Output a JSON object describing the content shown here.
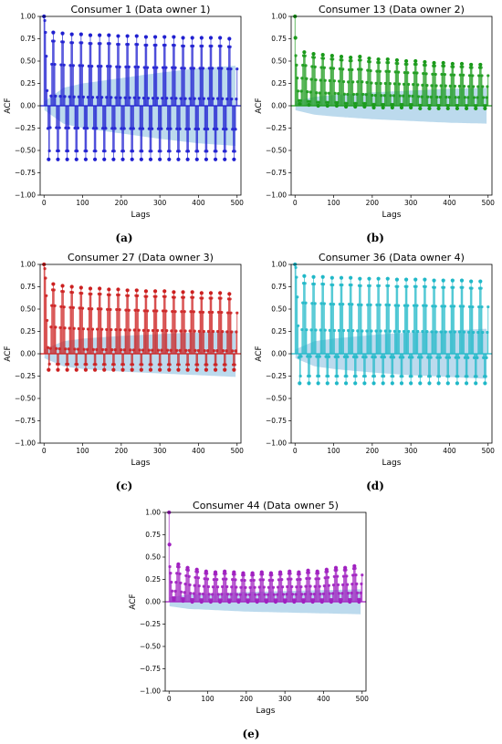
{
  "chart_data": [
    {
      "type": "line",
      "title": "Consumer 1 (Data owner 1)",
      "xlabel": "Lags",
      "ylabel": "ACF",
      "xlim": [
        -10,
        510
      ],
      "ylim": [
        -1.0,
        1.0
      ],
      "xticks": [
        0,
        100,
        200,
        300,
        400,
        500
      ],
      "yticks": [
        -1.0,
        -0.75,
        -0.5,
        -0.25,
        0.0,
        0.25,
        0.5,
        0.75,
        1.0
      ],
      "xtick_labels": [
        "0",
        "100",
        "200",
        "300",
        "400",
        "500"
      ],
      "ytick_labels": [
        "−1.00",
        "−0.75",
        "−0.50",
        "−0.25",
        "0.00",
        "0.25",
        "0.50",
        "0.75",
        "1.00"
      ],
      "caption": "(a)",
      "color": "#1f1fd0",
      "band_color": "#6baed6",
      "max_lag": 500,
      "period": 24,
      "peaks": [
        [
          0,
          1.0
        ],
        [
          24,
          0.82
        ],
        [
          48,
          0.81
        ],
        [
          72,
          0.8
        ],
        [
          96,
          0.8
        ],
        [
          120,
          0.79
        ],
        [
          144,
          0.79
        ],
        [
          168,
          0.79
        ],
        [
          192,
          0.78
        ],
        [
          216,
          0.78
        ],
        [
          240,
          0.78
        ],
        [
          264,
          0.77
        ],
        [
          288,
          0.77
        ],
        [
          312,
          0.77
        ],
        [
          336,
          0.77
        ],
        [
          360,
          0.76
        ],
        [
          384,
          0.76
        ],
        [
          408,
          0.76
        ],
        [
          432,
          0.76
        ],
        [
          456,
          0.76
        ],
        [
          480,
          0.75
        ]
      ],
      "troughs": [
        [
          12,
          -0.6
        ],
        [
          36,
          -0.6
        ],
        [
          60,
          -0.6
        ],
        [
          84,
          -0.6
        ],
        [
          108,
          -0.6
        ],
        [
          132,
          -0.6
        ],
        [
          156,
          -0.6
        ],
        [
          180,
          -0.6
        ],
        [
          204,
          -0.6
        ],
        [
          228,
          -0.6
        ],
        [
          252,
          -0.6
        ],
        [
          276,
          -0.6
        ],
        [
          300,
          -0.6
        ],
        [
          324,
          -0.6
        ],
        [
          348,
          -0.6
        ],
        [
          372,
          -0.6
        ],
        [
          396,
          -0.6
        ],
        [
          420,
          -0.6
        ],
        [
          444,
          -0.6
        ],
        [
          468,
          -0.6
        ],
        [
          492,
          -0.6
        ]
      ],
      "confidence_band": [
        [
          1,
          0.05
        ],
        [
          50,
          0.2
        ],
        [
          100,
          0.25
        ],
        [
          200,
          0.31
        ],
        [
          300,
          0.37
        ],
        [
          400,
          0.42
        ],
        [
          500,
          0.45
        ]
      ]
    },
    {
      "type": "line",
      "title": "Consumer 13 (Data owner 2)",
      "xlabel": "Lags",
      "ylabel": "ACF",
      "xlim": [
        -10,
        510
      ],
      "ylim": [
        -1.0,
        1.0
      ],
      "xticks": [
        0,
        100,
        200,
        300,
        400,
        500
      ],
      "yticks": [
        -1.0,
        -0.75,
        -0.5,
        -0.25,
        0.0,
        0.25,
        0.5,
        0.75,
        1.0
      ],
      "xtick_labels": [
        "0",
        "100",
        "200",
        "300",
        "400",
        "500"
      ],
      "ytick_labels": [
        "−1.00",
        "−0.75",
        "−0.50",
        "−0.25",
        "0.00",
        "0.25",
        "0.50",
        "0.75",
        "1.00"
      ],
      "caption": "(b)",
      "color": "#1a9a1a",
      "band_color": "#6baed6",
      "max_lag": 500,
      "period": 24,
      "peaks": [
        [
          0,
          1.0
        ],
        [
          1,
          0.76
        ],
        [
          24,
          0.6
        ],
        [
          48,
          0.58
        ],
        [
          72,
          0.57
        ],
        [
          96,
          0.56
        ],
        [
          120,
          0.55
        ],
        [
          144,
          0.54
        ],
        [
          168,
          0.55
        ],
        [
          192,
          0.53
        ],
        [
          216,
          0.52
        ],
        [
          240,
          0.52
        ],
        [
          264,
          0.51
        ],
        [
          288,
          0.5
        ],
        [
          312,
          0.5
        ],
        [
          336,
          0.49
        ],
        [
          360,
          0.48
        ],
        [
          384,
          0.48
        ],
        [
          408,
          0.47
        ],
        [
          432,
          0.47
        ],
        [
          456,
          0.46
        ],
        [
          480,
          0.46
        ]
      ],
      "troughs": [
        [
          12,
          0.02
        ],
        [
          36,
          0.01
        ],
        [
          60,
          0.0
        ],
        [
          84,
          0.0
        ],
        [
          108,
          0.0
        ],
        [
          132,
          -0.01
        ],
        [
          156,
          -0.01
        ],
        [
          180,
          -0.01
        ],
        [
          204,
          -0.02
        ],
        [
          228,
          -0.02
        ],
        [
          252,
          -0.02
        ],
        [
          276,
          -0.02
        ],
        [
          300,
          -0.02
        ],
        [
          324,
          -0.03
        ],
        [
          348,
          -0.03
        ],
        [
          372,
          -0.03
        ],
        [
          396,
          -0.03
        ],
        [
          420,
          -0.03
        ],
        [
          444,
          -0.03
        ],
        [
          468,
          -0.03
        ],
        [
          492,
          -0.03
        ]
      ],
      "confidence_band": [
        [
          1,
          0.05
        ],
        [
          50,
          0.1
        ],
        [
          100,
          0.12
        ],
        [
          200,
          0.15
        ],
        [
          300,
          0.17
        ],
        [
          400,
          0.19
        ],
        [
          500,
          0.2
        ]
      ]
    },
    {
      "type": "line",
      "title": "Consumer 27 (Data owner 3)",
      "xlabel": "Lags",
      "ylabel": "ACF",
      "xlim": [
        -10,
        510
      ],
      "ylim": [
        -1.0,
        1.0
      ],
      "xticks": [
        0,
        100,
        200,
        300,
        400,
        500
      ],
      "yticks": [
        -1.0,
        -0.75,
        -0.5,
        -0.25,
        0.0,
        0.25,
        0.5,
        0.75,
        1.0
      ],
      "xtick_labels": [
        "0",
        "100",
        "200",
        "300",
        "400",
        "500"
      ],
      "ytick_labels": [
        "−1.00",
        "−0.75",
        "−0.50",
        "−0.25",
        "0.00",
        "0.25",
        "0.50",
        "0.75",
        "1.00"
      ],
      "caption": "(c)",
      "color": "#cc2020",
      "band_color": "#6baed6",
      "max_lag": 500,
      "period": 24,
      "peaks": [
        [
          0,
          1.0
        ],
        [
          24,
          0.78
        ],
        [
          48,
          0.76
        ],
        [
          72,
          0.75
        ],
        [
          96,
          0.74
        ],
        [
          120,
          0.73
        ],
        [
          144,
          0.73
        ],
        [
          168,
          0.72
        ],
        [
          192,
          0.72
        ],
        [
          216,
          0.71
        ],
        [
          240,
          0.71
        ],
        [
          264,
          0.7
        ],
        [
          288,
          0.7
        ],
        [
          312,
          0.7
        ],
        [
          336,
          0.69
        ],
        [
          360,
          0.69
        ],
        [
          384,
          0.69
        ],
        [
          408,
          0.68
        ],
        [
          432,
          0.68
        ],
        [
          456,
          0.68
        ],
        [
          480,
          0.67
        ]
      ],
      "troughs": [
        [
          12,
          -0.18
        ],
        [
          36,
          -0.18
        ],
        [
          60,
          -0.18
        ],
        [
          84,
          -0.18
        ],
        [
          108,
          -0.18
        ],
        [
          132,
          -0.18
        ],
        [
          156,
          -0.18
        ],
        [
          180,
          -0.18
        ],
        [
          204,
          -0.18
        ],
        [
          228,
          -0.18
        ],
        [
          252,
          -0.18
        ],
        [
          276,
          -0.18
        ],
        [
          300,
          -0.18
        ],
        [
          324,
          -0.18
        ],
        [
          348,
          -0.18
        ],
        [
          372,
          -0.18
        ],
        [
          396,
          -0.18
        ],
        [
          420,
          -0.18
        ],
        [
          444,
          -0.18
        ],
        [
          468,
          -0.18
        ],
        [
          492,
          -0.18
        ]
      ],
      "confidence_band": [
        [
          1,
          0.05
        ],
        [
          50,
          0.14
        ],
        [
          100,
          0.17
        ],
        [
          200,
          0.2
        ],
        [
          300,
          0.22
        ],
        [
          400,
          0.24
        ],
        [
          500,
          0.26
        ]
      ]
    },
    {
      "type": "line",
      "title": "Consumer 36 (Data owner 4)",
      "xlabel": "Lags",
      "ylabel": "ACF",
      "xlim": [
        -10,
        510
      ],
      "ylim": [
        -1.0,
        1.0
      ],
      "xticks": [
        0,
        100,
        200,
        300,
        400,
        500
      ],
      "yticks": [
        -1.0,
        -0.75,
        -0.5,
        -0.25,
        0.0,
        0.25,
        0.5,
        0.75,
        1.0
      ],
      "xtick_labels": [
        "0",
        "100",
        "200",
        "300",
        "400",
        "500"
      ],
      "ytick_labels": [
        "−1.00",
        "−0.75",
        "−0.50",
        "−0.25",
        "0.00",
        "0.25",
        "0.50",
        "0.75",
        "1.00"
      ],
      "caption": "(d)",
      "color": "#20b8c8",
      "band_color": "#6baed6",
      "max_lag": 500,
      "period": 24,
      "peaks": [
        [
          0,
          1.0
        ],
        [
          24,
          0.87
        ],
        [
          48,
          0.86
        ],
        [
          72,
          0.86
        ],
        [
          96,
          0.85
        ],
        [
          120,
          0.85
        ],
        [
          144,
          0.85
        ],
        [
          168,
          0.84
        ],
        [
          192,
          0.84
        ],
        [
          216,
          0.84
        ],
        [
          240,
          0.84
        ],
        [
          264,
          0.83
        ],
        [
          288,
          0.83
        ],
        [
          312,
          0.83
        ],
        [
          336,
          0.83
        ],
        [
          360,
          0.82
        ],
        [
          384,
          0.82
        ],
        [
          408,
          0.82
        ],
        [
          432,
          0.82
        ],
        [
          456,
          0.81
        ],
        [
          480,
          0.81
        ]
      ],
      "troughs": [
        [
          12,
          -0.33
        ],
        [
          36,
          -0.33
        ],
        [
          60,
          -0.33
        ],
        [
          84,
          -0.33
        ],
        [
          108,
          -0.33
        ],
        [
          132,
          -0.33
        ],
        [
          156,
          -0.33
        ],
        [
          180,
          -0.33
        ],
        [
          204,
          -0.33
        ],
        [
          228,
          -0.33
        ],
        [
          252,
          -0.33
        ],
        [
          276,
          -0.33
        ],
        [
          300,
          -0.33
        ],
        [
          324,
          -0.33
        ],
        [
          348,
          -0.33
        ],
        [
          372,
          -0.33
        ],
        [
          396,
          -0.33
        ],
        [
          420,
          -0.33
        ],
        [
          444,
          -0.33
        ],
        [
          468,
          -0.33
        ],
        [
          492,
          -0.33
        ]
      ],
      "confidence_band": [
        [
          1,
          0.05
        ],
        [
          50,
          0.14
        ],
        [
          100,
          0.17
        ],
        [
          200,
          0.21
        ],
        [
          300,
          0.24
        ],
        [
          400,
          0.26
        ],
        [
          500,
          0.28
        ]
      ]
    },
    {
      "type": "line",
      "title": "Consumer 44 (Data owner 5)",
      "xlabel": "Lags",
      "ylabel": "ACF",
      "xlim": [
        -10,
        510
      ],
      "ylim": [
        -1.0,
        1.0
      ],
      "xticks": [
        0,
        100,
        200,
        300,
        400,
        500
      ],
      "yticks": [
        -1.0,
        -0.75,
        -0.5,
        -0.25,
        0.0,
        0.25,
        0.5,
        0.75,
        1.0
      ],
      "xtick_labels": [
        "0",
        "100",
        "200",
        "300",
        "400",
        "500"
      ],
      "ytick_labels": [
        "−1.00",
        "−0.75",
        "−0.50",
        "−0.25",
        "0.00",
        "0.25",
        "0.50",
        "0.75",
        "1.00"
      ],
      "caption": "(e)",
      "color": "#a020c0",
      "band_color": "#6baed6",
      "max_lag": 500,
      "period": 24,
      "peaks": [
        [
          0,
          1.0
        ],
        [
          1,
          0.64
        ],
        [
          24,
          0.42
        ],
        [
          48,
          0.38
        ],
        [
          72,
          0.36
        ],
        [
          96,
          0.34
        ],
        [
          120,
          0.33
        ],
        [
          144,
          0.34
        ],
        [
          168,
          0.33
        ],
        [
          192,
          0.32
        ],
        [
          216,
          0.32
        ],
        [
          240,
          0.33
        ],
        [
          264,
          0.32
        ],
        [
          288,
          0.33
        ],
        [
          312,
          0.34
        ],
        [
          336,
          0.33
        ],
        [
          360,
          0.35
        ],
        [
          384,
          0.34
        ],
        [
          408,
          0.36
        ],
        [
          432,
          0.38
        ],
        [
          456,
          0.38
        ],
        [
          480,
          0.4
        ]
      ],
      "troughs": [
        [
          12,
          0.02
        ],
        [
          36,
          0.01
        ],
        [
          60,
          0.0
        ],
        [
          84,
          0.0
        ],
        [
          108,
          0.0
        ],
        [
          132,
          0.0
        ],
        [
          156,
          0.0
        ],
        [
          180,
          0.0
        ],
        [
          204,
          0.0
        ],
        [
          228,
          0.0
        ],
        [
          252,
          0.0
        ],
        [
          276,
          0.0
        ],
        [
          300,
          0.0
        ],
        [
          324,
          0.0
        ],
        [
          348,
          0.0
        ],
        [
          372,
          0.0
        ],
        [
          396,
          0.0
        ],
        [
          420,
          0.0
        ],
        [
          444,
          0.0
        ],
        [
          468,
          0.0
        ],
        [
          492,
          0.0
        ]
      ],
      "confidence_band": [
        [
          1,
          0.05
        ],
        [
          50,
          0.08
        ],
        [
          100,
          0.09
        ],
        [
          200,
          0.11
        ],
        [
          300,
          0.12
        ],
        [
          400,
          0.13
        ],
        [
          500,
          0.14
        ]
      ]
    }
  ]
}
